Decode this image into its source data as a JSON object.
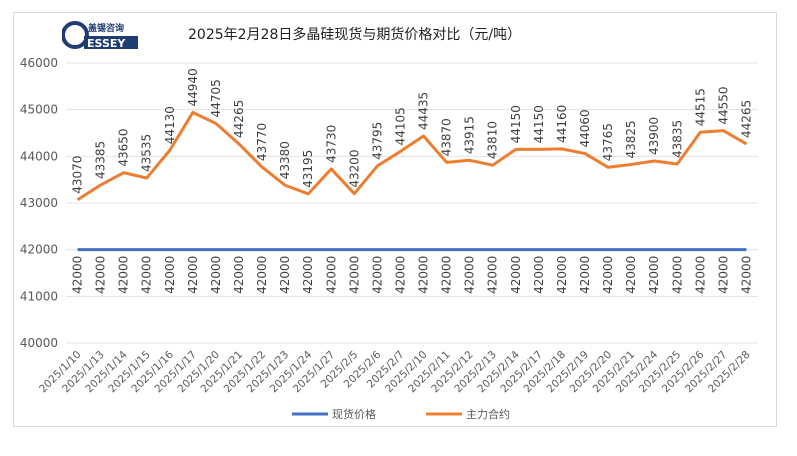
{
  "logo": {
    "cn": "盖锡咨询",
    "en": "GESSEY"
  },
  "chart_data": {
    "type": "line",
    "title": "2025年2月28日多晶硅现货与期货价格对比（元/吨）",
    "ylim": [
      40000,
      46000
    ],
    "yticks": [
      "40000",
      "41000",
      "42000",
      "43000",
      "44000",
      "45000",
      "46000"
    ],
    "grid": true,
    "legend_position": "bottom",
    "categories": [
      "2025/1/10",
      "2025/1/13",
      "2025/1/14",
      "2025/1/15",
      "2025/1/16",
      "2025/1/17",
      "2025/1/20",
      "2025/1/21",
      "2025/1/22",
      "2025/1/23",
      "2025/1/24",
      "2025/1/27",
      "2025/2/5",
      "2025/2/6",
      "2025/2/7",
      "2025/2/10",
      "2025/2/11",
      "2025/2/12",
      "2025/2/13",
      "2025/2/14",
      "2025/2/17",
      "2025/2/18",
      "2025/2/19",
      "2025/2/20",
      "2025/2/21",
      "2025/2/24",
      "2025/2/25",
      "2025/2/26",
      "2025/2/27",
      "2025/2/28"
    ],
    "series": [
      {
        "name": "现货价格",
        "color": "#4472c4",
        "values": [
          42000,
          42000,
          42000,
          42000,
          42000,
          42000,
          42000,
          42000,
          42000,
          42000,
          42000,
          42000,
          42000,
          42000,
          42000,
          42000,
          42000,
          42000,
          42000,
          42000,
          42000,
          42000,
          42000,
          42000,
          42000,
          42000,
          42000,
          42000,
          42000,
          42000
        ]
      },
      {
        "name": "主力合约",
        "color": "#ed7d31",
        "values": [
          43070,
          43385,
          43650,
          43535,
          44130,
          44940,
          44705,
          44265,
          43770,
          43380,
          43195,
          43730,
          43200,
          43795,
          44105,
          44435,
          43870,
          43915,
          43810,
          44150,
          44150,
          44160,
          44060,
          43765,
          43825,
          43900,
          43835,
          44515,
          44550,
          44265
        ]
      }
    ]
  }
}
